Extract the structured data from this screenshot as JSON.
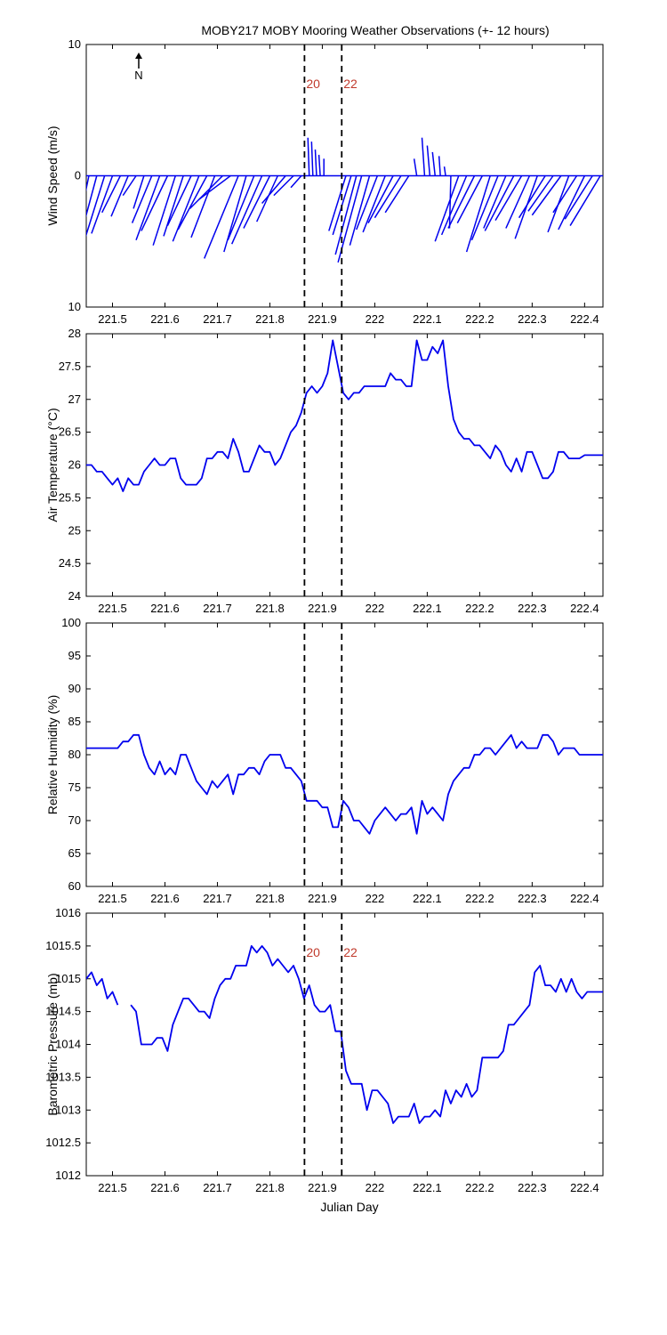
{
  "title": "MOBY217 MOBY Mooring Weather Observations (+- 12 hours)",
  "xlabel": "Julian Day",
  "north_label": "N",
  "colors": {
    "series": "#0000ee",
    "marker_text": "#c0392b",
    "axis": "#000000"
  },
  "markers": [
    {
      "x": 221.866,
      "label": "20"
    },
    {
      "x": 221.937,
      "label": "22"
    }
  ],
  "x_ticks": [
    "221.5",
    "221.6",
    "221.7",
    "221.8",
    "221.9",
    "222",
    "222.1",
    "222.2",
    "222.3",
    "222.4"
  ],
  "chart_data": [
    {
      "type": "line",
      "subtype": "wind-barbs",
      "ylabel": "Wind Speed (m/s)",
      "xlim": [
        221.45,
        222.435
      ],
      "ylim": [
        -10,
        10
      ],
      "yticks": [
        -10,
        0,
        10
      ],
      "ytick_labels": [
        "10",
        "0",
        "10"
      ],
      "show_markers_text": true,
      "series": [
        {
          "x": [
            221.455,
            221.47,
            221.485,
            221.5,
            221.515,
            221.53,
            221.545,
            221.56,
            221.575,
            221.59,
            221.605,
            221.62,
            221.635,
            221.65,
            221.665,
            221.68,
            221.695,
            221.71,
            221.725,
            221.74,
            221.755,
            221.77,
            221.785,
            221.8,
            221.815,
            221.83,
            221.845,
            221.86,
            221.875,
            221.882,
            221.889,
            221.896,
            221.903,
            221.91,
            221.917,
            221.924,
            221.931,
            221.945,
            221.955,
            221.965,
            221.975,
            221.99,
            222.005,
            222.02,
            222.035,
            222.05,
            222.065,
            222.08,
            222.095,
            222.105,
            222.115,
            222.125,
            222.135,
            222.145,
            222.16,
            222.175,
            222.19,
            222.205,
            222.22,
            222.235,
            222.25,
            222.265,
            222.28,
            222.295,
            222.31,
            222.325,
            222.34,
            222.355,
            222.37,
            222.385,
            222.4,
            222.415,
            222.43
          ],
          "u": [
            -1.2,
            -1.4,
            -1.5,
            -1.6,
            -1.4,
            -1.3,
            -1.0,
            -0.8,
            -1.5,
            -1.8,
            -2.0,
            -1.7,
            -1.5,
            -1.8,
            -2.0,
            -2.2,
            -1.8,
            -2.5,
            -2.4,
            -2.6,
            -1.7,
            -2.0,
            -2.3,
            -2.0,
            -1.6,
            -1.8,
            -1.5,
            -0.8,
            -0.1,
            -0.1,
            -0.1,
            -0.1,
            0.0,
            0.0,
            0.0,
            0.0,
            0.0,
            -1.3,
            -1.4,
            -1.6,
            -1.8,
            -1.5,
            -1.6,
            -1.7,
            -1.9,
            -2.0,
            -1.8,
            -0.2,
            -0.2,
            -0.2,
            -0.2,
            -0.1,
            -0.1,
            -0.1,
            -1.8,
            -1.9,
            -2.0,
            -1.9,
            -1.8,
            -2.0,
            -1.7,
            -2.2,
            -2.0,
            -1.8,
            -1.7,
            -2.0,
            -1.9,
            -2.2,
            -1.6,
            -1.8,
            -2.0,
            -2.1,
            -2.3
          ],
          "v": [
            -5.8,
            -5.2,
            -4.8,
            -4.4,
            -2.8,
            -3.1,
            -1.5,
            -2.5,
            -3.6,
            -4.9,
            -4.2,
            -5.3,
            -4.6,
            -3.8,
            -5.0,
            -4.1,
            -4.7,
            -2.5,
            -1.8,
            -6.3,
            -5.8,
            -4.9,
            -5.2,
            -4.0,
            -3.5,
            -2.1,
            -1.5,
            -0.9,
            2.9,
            2.6,
            2.0,
            1.6,
            1.3,
            0.0,
            0.0,
            0.0,
            0.0,
            -4.2,
            -4.5,
            -6.0,
            -6.6,
            -5.3,
            -4.1,
            -4.3,
            -3.6,
            -3.2,
            -2.8,
            1.3,
            2.9,
            2.3,
            1.8,
            1.5,
            0.7,
            -4.0,
            -5.0,
            -4.5,
            -4.0,
            -3.6,
            -5.8,
            -4.9,
            -4.0,
            -4.2,
            -3.4,
            -4.0,
            -4.8,
            -3.2,
            -2.7,
            -3.0,
            -4.3,
            -2.8,
            -4.1,
            -3.3,
            -3.8
          ]
        }
      ]
    },
    {
      "type": "line",
      "ylabel": "Air Temperature (°C)",
      "xlim": [
        221.45,
        222.435
      ],
      "ylim": [
        24,
        28
      ],
      "yticks": [
        24,
        24.5,
        25,
        25.5,
        26,
        26.5,
        27,
        27.5,
        28
      ],
      "ytick_labels": [
        "24",
        "24.5",
        "25",
        "25.5",
        "26",
        "26.5",
        "27",
        "27.5",
        "28"
      ],
      "show_markers_text": false,
      "series": [
        {
          "x": [
            221.45,
            221.46,
            221.47,
            221.48,
            221.49,
            221.5,
            221.51,
            221.52,
            221.53,
            221.54,
            221.55,
            221.56,
            221.57,
            221.58,
            221.59,
            221.6,
            221.61,
            221.62,
            221.63,
            221.64,
            221.65,
            221.66,
            221.67,
            221.68,
            221.69,
            221.7,
            221.71,
            221.72,
            221.73,
            221.74,
            221.75,
            221.76,
            221.77,
            221.78,
            221.79,
            221.8,
            221.81,
            221.82,
            221.83,
            221.84,
            221.85,
            221.86,
            221.87,
            221.88,
            221.89,
            221.9,
            221.91,
            221.92,
            221.93,
            221.94,
            221.95,
            221.96,
            221.97,
            221.98,
            221.99,
            222.0,
            222.01,
            222.02,
            222.03,
            222.04,
            222.05,
            222.06,
            222.07,
            222.08,
            222.09,
            222.1,
            222.11,
            222.12,
            222.13,
            222.14,
            222.15,
            222.16,
            222.17,
            222.18,
            222.19,
            222.2,
            222.21,
            222.22,
            222.23,
            222.24,
            222.25,
            222.26,
            222.27,
            222.28,
            222.29,
            222.3,
            222.31,
            222.32,
            222.33,
            222.34,
            222.35,
            222.36,
            222.37,
            222.38,
            222.39,
            222.4,
            222.41,
            222.42,
            222.43,
            222.435
          ],
          "y": [
            26.0,
            26.0,
            25.9,
            25.9,
            25.8,
            25.7,
            25.8,
            25.6,
            25.8,
            25.7,
            25.7,
            25.9,
            26.0,
            26.1,
            26.0,
            26.0,
            26.1,
            26.1,
            25.8,
            25.7,
            25.7,
            25.7,
            25.8,
            26.1,
            26.1,
            26.2,
            26.2,
            26.1,
            26.4,
            26.2,
            25.9,
            25.9,
            26.1,
            26.3,
            26.2,
            26.2,
            26.0,
            26.1,
            26.3,
            26.5,
            26.6,
            26.8,
            27.1,
            27.2,
            27.1,
            27.2,
            27.4,
            27.9,
            27.5,
            27.1,
            27.0,
            27.1,
            27.1,
            27.2,
            27.2,
            27.2,
            27.2,
            27.2,
            27.4,
            27.3,
            27.3,
            27.2,
            27.2,
            27.9,
            27.6,
            27.6,
            27.8,
            27.7,
            27.9,
            27.2,
            26.7,
            26.5,
            26.4,
            26.4,
            26.3,
            26.3,
            26.2,
            26.1,
            26.3,
            26.2,
            26.0,
            25.9,
            26.1,
            25.9,
            26.2,
            26.2,
            26.0,
            25.8,
            25.8,
            25.9,
            26.2,
            26.2,
            26.1,
            26.1,
            26.1,
            26.15,
            26.15,
            26.15,
            26.15,
            26.15
          ]
        }
      ]
    },
    {
      "type": "line",
      "ylabel": "Relative Humidity (%)",
      "xlim": [
        221.45,
        222.435
      ],
      "ylim": [
        60,
        100
      ],
      "yticks": [
        60,
        65,
        70,
        75,
        80,
        85,
        90,
        95,
        100
      ],
      "ytick_labels": [
        "60",
        "65",
        "70",
        "75",
        "80",
        "85",
        "90",
        "95",
        "100"
      ],
      "show_markers_text": false,
      "series": [
        {
          "x": [
            221.45,
            221.46,
            221.47,
            221.48,
            221.49,
            221.5,
            221.51,
            221.52,
            221.53,
            221.54,
            221.55,
            221.56,
            221.57,
            221.58,
            221.59,
            221.6,
            221.61,
            221.62,
            221.63,
            221.64,
            221.65,
            221.66,
            221.67,
            221.68,
            221.69,
            221.7,
            221.71,
            221.72,
            221.73,
            221.74,
            221.75,
            221.76,
            221.77,
            221.78,
            221.79,
            221.8,
            221.81,
            221.82,
            221.83,
            221.84,
            221.85,
            221.86,
            221.87,
            221.88,
            221.89,
            221.9,
            221.91,
            221.92,
            221.93,
            221.94,
            221.95,
            221.96,
            221.97,
            221.98,
            221.99,
            222.0,
            222.01,
            222.02,
            222.03,
            222.04,
            222.05,
            222.06,
            222.07,
            222.08,
            222.09,
            222.1,
            222.11,
            222.12,
            222.13,
            222.14,
            222.15,
            222.16,
            222.17,
            222.18,
            222.19,
            222.2,
            222.21,
            222.22,
            222.23,
            222.24,
            222.25,
            222.26,
            222.27,
            222.28,
            222.29,
            222.3,
            222.31,
            222.32,
            222.33,
            222.34,
            222.35,
            222.36,
            222.37,
            222.38,
            222.39,
            222.4,
            222.41,
            222.42,
            222.43,
            222.435
          ],
          "y": [
            81,
            81,
            81,
            81,
            81,
            81,
            81,
            82,
            82,
            83,
            83,
            80,
            78,
            77,
            79,
            77,
            78,
            77,
            80,
            80,
            78,
            76,
            75,
            74,
            76,
            75,
            76,
            77,
            74,
            77,
            77,
            78,
            78,
            77,
            79,
            80,
            80,
            80,
            78,
            78,
            77,
            76,
            73,
            73,
            73,
            72,
            72,
            69,
            69,
            73,
            72,
            70,
            70,
            69,
            68,
            70,
            71,
            72,
            71,
            70,
            71,
            71,
            72,
            68,
            73,
            71,
            72,
            71,
            70,
            74,
            76,
            77,
            78,
            78,
            80,
            80,
            81,
            81,
            80,
            81,
            82,
            83,
            81,
            82,
            81,
            81,
            81,
            83,
            83,
            82,
            80,
            81,
            81,
            81,
            80,
            80,
            80,
            80,
            80,
            80
          ]
        }
      ]
    },
    {
      "type": "line",
      "ylabel": "Barometric Pressure (mb)",
      "xlim": [
        221.45,
        222.435
      ],
      "ylim": [
        1012,
        1016
      ],
      "yticks": [
        1012,
        1012.5,
        1013,
        1013.5,
        1014,
        1014.5,
        1015,
        1015.5,
        1016
      ],
      "ytick_labels": [
        "1012",
        "1012.5",
        "1013",
        "1013.5",
        "1014",
        "1014.5",
        "1015",
        "1015.5",
        "1016"
      ],
      "show_markers_text": true,
      "series": [
        {
          "x": [
            221.45,
            221.46,
            221.47,
            221.48,
            221.49,
            221.5,
            221.51
          ],
          "y": [
            1015.0,
            1015.1,
            1014.9,
            1015.0,
            1014.7,
            1014.8,
            1014.6
          ]
        },
        {
          "x": [
            221.535,
            221.545,
            221.555,
            221.565,
            221.575,
            221.585,
            221.595,
            221.605,
            221.615,
            221.625,
            221.635,
            221.645,
            221.655,
            221.665,
            221.675,
            221.685,
            221.695,
            221.705,
            221.715,
            221.725,
            221.735,
            221.745,
            221.755,
            221.765,
            221.775,
            221.785,
            221.795,
            221.805,
            221.815,
            221.825,
            221.835,
            221.845,
            221.855,
            221.865,
            221.875,
            221.885,
            221.895,
            221.905,
            221.915,
            221.925,
            221.935,
            221.945,
            221.955,
            221.965,
            221.975,
            221.985,
            221.995,
            222.005,
            222.015,
            222.025,
            222.035,
            222.045,
            222.055,
            222.065,
            222.075,
            222.085,
            222.095,
            222.105,
            222.115,
            222.125,
            222.135,
            222.145,
            222.155,
            222.165,
            222.175,
            222.185,
            222.195,
            222.205,
            222.215,
            222.225,
            222.235,
            222.245,
            222.255,
            222.265,
            222.275,
            222.285,
            222.295,
            222.305,
            222.315,
            222.325,
            222.335,
            222.345,
            222.355,
            222.365,
            222.375,
            222.385,
            222.395,
            222.405,
            222.415,
            222.425,
            222.435
          ],
          "y": [
            1014.6,
            1014.5,
            1014.0,
            1014.0,
            1014.0,
            1014.1,
            1014.1,
            1013.9,
            1014.3,
            1014.5,
            1014.7,
            1014.7,
            1014.6,
            1014.5,
            1014.5,
            1014.4,
            1014.7,
            1014.9,
            1015.0,
            1015.0,
            1015.2,
            1015.2,
            1015.2,
            1015.5,
            1015.4,
            1015.5,
            1015.4,
            1015.2,
            1015.3,
            1015.2,
            1015.1,
            1015.2,
            1015.0,
            1014.7,
            1014.9,
            1014.6,
            1014.5,
            1014.5,
            1014.6,
            1014.2,
            1014.2,
            1013.6,
            1013.4,
            1013.4,
            1013.4,
            1013.0,
            1013.3,
            1013.3,
            1013.2,
            1013.1,
            1012.8,
            1012.9,
            1012.9,
            1012.9,
            1013.1,
            1012.8,
            1012.9,
            1012.9,
            1013.0,
            1012.9,
            1013.3,
            1013.1,
            1013.3,
            1013.2,
            1013.4,
            1013.2,
            1013.3,
            1013.8,
            1013.8,
            1013.8,
            1013.8,
            1013.9,
            1014.3,
            1014.3,
            1014.4,
            1014.5,
            1014.6,
            1015.1,
            1015.2,
            1014.9,
            1014.9,
            1014.8,
            1015.0,
            1014.8,
            1015.0,
            1014.8,
            1014.7,
            1014.8,
            1014.8,
            1014.8,
            1014.8
          ]
        }
      ]
    }
  ]
}
